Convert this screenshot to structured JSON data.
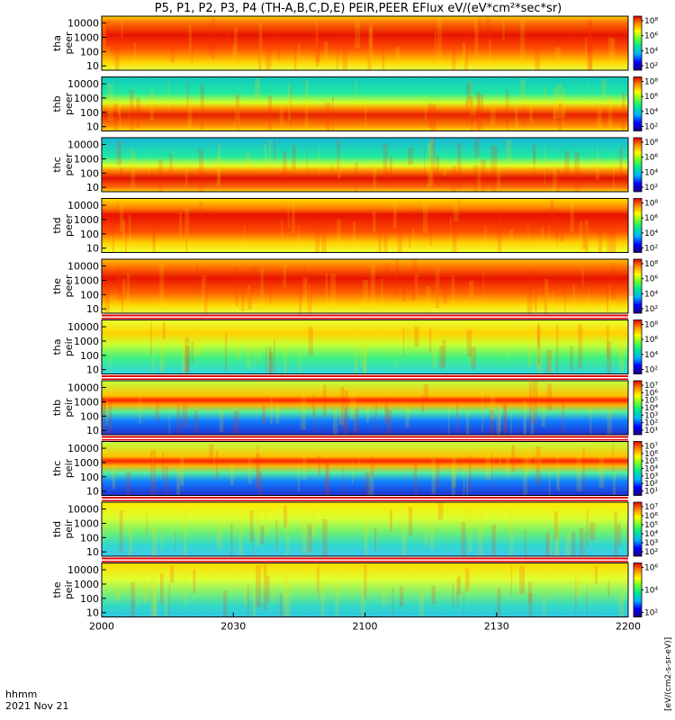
{
  "chart_data": {
    "type": "heatmap",
    "title": "P5, P1, P2, P3, P4 (TH-A,B,C,D,E) PEIR,PEER EFlux eV/(eV*cm²*sec*sr)",
    "x_label_top": "hhmm",
    "x_label_bottom": "2021 Nov 21",
    "x_ticks": [
      "2000",
      "2030",
      "2100",
      "2130",
      "2200"
    ],
    "x_range_hhmm": [
      "2000",
      "2200"
    ],
    "y_ticks": [
      "10",
      "100",
      "1000",
      "10000"
    ],
    "y_range_eV": [
      5,
      30000
    ],
    "y_scale": "log",
    "color_scale": "log (rainbow)",
    "colorbar_label": "[eV/(cm2-s-sr-eV)]",
    "panels": [
      {
        "probe": "tha",
        "species": "peer",
        "cb_ticks": [
          "10⁸",
          "10⁶",
          "10⁴",
          "10²"
        ],
        "pattern": "high flux, mixed low-energy; dense spectra after ~2033"
      },
      {
        "probe": "thb",
        "species": "peer",
        "cb_ticks": [
          "10⁸",
          "10⁶",
          "10⁴",
          "10²"
        ],
        "pattern": "steady red band ~30-300 eV"
      },
      {
        "probe": "thc",
        "species": "peer",
        "cb_ticks": [
          "10⁸",
          "10⁶",
          "10⁴",
          "10²"
        ],
        "pattern": "steady red band ~20-200 eV"
      },
      {
        "probe": "thd",
        "species": "peer",
        "cb_ticks": [
          "10⁸",
          "10⁶",
          "10⁴",
          "10²"
        ],
        "pattern": "broad red band ~100-3000 eV"
      },
      {
        "probe": "the",
        "species": "peer",
        "cb_ticks": [
          "10⁸",
          "10⁶",
          "10⁴",
          "10²"
        ],
        "pattern": "high flux, bursty early; dense after ~2025"
      },
      {
        "probe": "tha",
        "species": "peir",
        "cb_ticks": [
          "10⁸",
          "10⁶",
          "10⁴",
          "10²"
        ],
        "pattern": "warm ~300-5000 eV early, fading"
      },
      {
        "probe": "thb",
        "species": "peir",
        "cb_ticks": [
          "10⁷",
          "10⁶",
          "10⁵",
          "10⁴",
          "10³",
          "10²",
          "10¹"
        ],
        "pattern": "narrow band ~2 keV, noisy low energy"
      },
      {
        "probe": "thc",
        "species": "peir",
        "cb_ticks": [
          "10⁷",
          "10⁶",
          "10⁵",
          "10⁴",
          "10³",
          "10²",
          "10¹"
        ],
        "pattern": "narrow band ~2 keV, noisy low energy"
      },
      {
        "probe": "thd",
        "species": "peir",
        "cb_ticks": [
          "10⁷",
          "10⁶",
          "10⁵",
          "10⁴",
          "10³",
          "10²"
        ],
        "pattern": "weak band ~1-10 keV"
      },
      {
        "probe": "the",
        "species": "peir",
        "cb_ticks": [
          "10⁶",
          "10⁴",
          "10²"
        ],
        "pattern": "weak band ~1-10 keV"
      }
    ]
  }
}
